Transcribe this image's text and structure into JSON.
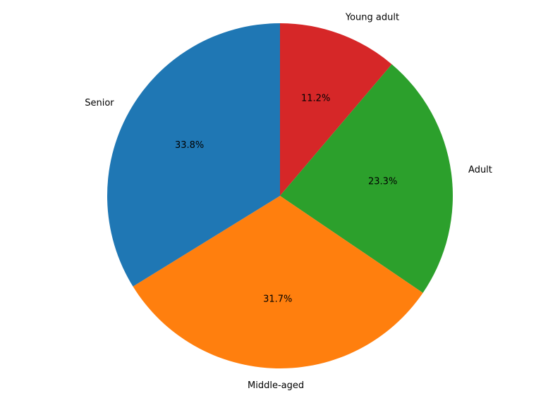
{
  "chart_data": {
    "type": "pie",
    "title": "",
    "start_angle_deg": 90,
    "direction": "clockwise",
    "legend": "none",
    "slices": [
      {
        "label": "Young adult",
        "value": 11.2,
        "pct_label": "11.2%",
        "color": "#d62728"
      },
      {
        "label": "Adult",
        "value": 23.3,
        "pct_label": "23.3%",
        "color": "#2ca02c"
      },
      {
        "label": "Middle-aged",
        "value": 31.7,
        "pct_label": "31.7%",
        "color": "#ff7f0e"
      },
      {
        "label": "Senior",
        "value": 33.8,
        "pct_label": "33.8%",
        "color": "#1f77b4"
      }
    ]
  }
}
